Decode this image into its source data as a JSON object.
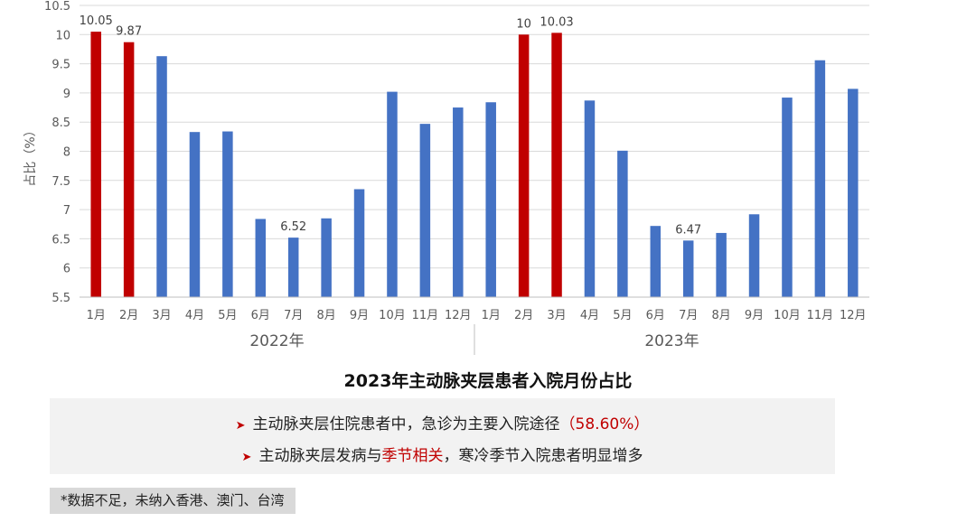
{
  "chart_data": {
    "type": "bar",
    "title": "2023年主动脉夹层患者入院月份占比",
    "ylabel": "占比（%）",
    "ylim": [
      5.5,
      10.5
    ],
    "yticks": [
      "5.5",
      "6",
      "6.5",
      "7",
      "7.5",
      "8",
      "8.5",
      "9",
      "9.5",
      "10",
      "10.5"
    ],
    "grid": true,
    "groups": [
      {
        "label": "2022年",
        "categories": [
          "1月",
          "2月",
          "3月",
          "4月",
          "5月",
          "6月",
          "7月",
          "8月",
          "9月",
          "10月",
          "11月",
          "12月"
        ],
        "values": [
          10.05,
          9.87,
          9.63,
          8.33,
          8.34,
          6.84,
          6.52,
          6.85,
          7.35,
          9.02,
          8.47,
          8.75
        ],
        "highlight": [
          true,
          true,
          false,
          false,
          false,
          false,
          false,
          false,
          false,
          false,
          false,
          false
        ],
        "labels": [
          "10.05",
          "9.87",
          "",
          "",
          "",
          "",
          "6.52",
          "",
          "",
          "",
          "",
          ""
        ]
      },
      {
        "label": "2023年",
        "categories": [
          "1月",
          "2月",
          "3月",
          "4月",
          "5月",
          "6月",
          "7月",
          "8月",
          "9月",
          "10月",
          "11月",
          "12月"
        ],
        "values": [
          8.84,
          10.0,
          10.03,
          8.87,
          8.01,
          6.72,
          6.47,
          6.6,
          6.92,
          8.92,
          9.56,
          9.07
        ],
        "highlight": [
          false,
          true,
          true,
          false,
          false,
          false,
          false,
          false,
          false,
          false,
          false,
          false
        ],
        "labels": [
          "",
          "10",
          "10.03",
          "",
          "",
          "",
          "6.47",
          "",
          "",
          "",
          "",
          ""
        ]
      }
    ],
    "colors": {
      "normal": "#4472c4",
      "highlight": "#c00000"
    }
  },
  "notes": {
    "line1_text": "主动脉夹层住院患者中，急诊为主要入院途径",
    "line1_highlight": "（58.60%）",
    "line2_pre": "主动脉夹层发病与",
    "line2_highlight": "季节相关",
    "line2_post": "，寒冷季节入院患者明显增多",
    "arrow_icon": "red-triangle-arrow"
  },
  "footnote": "*数据不足，未纳入香港、澳门、台湾"
}
